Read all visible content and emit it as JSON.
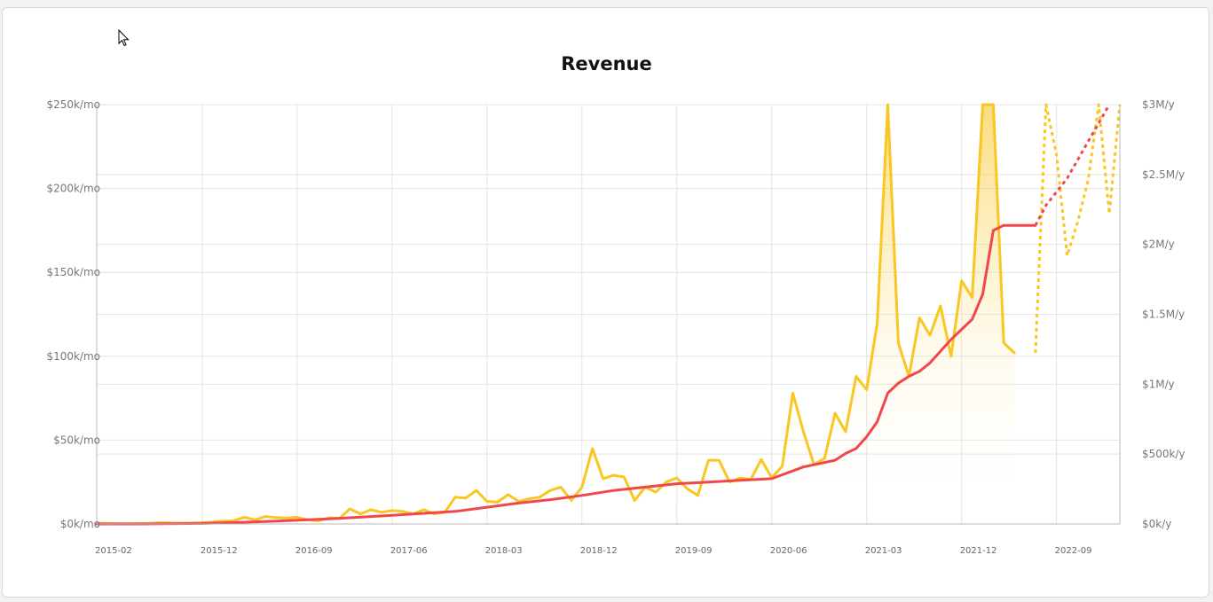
{
  "colors": {
    "monthly": "#f9c623",
    "annual": "#f0474a",
    "grid": "#e3e3e3",
    "axis": "#b9b9b9"
  },
  "chart_data": {
    "type": "line",
    "title": "Revenue",
    "left_axis": {
      "unit": "k/mo",
      "ylim": [
        0,
        250000
      ],
      "tick_labels": [
        "$250k/mo",
        "$200k/mo",
        "$150k/mo",
        "$100k/mo",
        "$50k/mo",
        "$0k/mo"
      ],
      "tick_values": [
        250000,
        200000,
        150000,
        100000,
        50000,
        0
      ]
    },
    "right_axis": {
      "unit": "M/y",
      "ylim": [
        0,
        3000000
      ],
      "tick_labels": [
        "$3M/y",
        "$2.5M/y",
        "$2M/y",
        "$1.5M/y",
        "$1M/y",
        "$500k/y",
        "$0k/y"
      ],
      "tick_values": [
        3000000,
        2500000,
        2000000,
        1500000,
        1000000,
        500000,
        0
      ]
    },
    "x_axis": {
      "range": [
        "2015-02",
        "2023-03"
      ],
      "tick_labels": [
        "2015-02",
        "2015-12",
        "2016-09",
        "2017-06",
        "2018-03",
        "2018-12",
        "2019-09",
        "2020-06",
        "2021-03",
        "2021-12",
        "2022-09"
      ],
      "tick_values": [
        "2015-02",
        "2015-12",
        "2016-09",
        "2017-06",
        "2018-03",
        "2018-12",
        "2019-09",
        "2020-06",
        "2021-03",
        "2021-12",
        "2022-09"
      ]
    },
    "grid": true,
    "series": [
      {
        "key": "monthly",
        "axis": "left",
        "area": true,
        "x": [
          "2015-02",
          "2015-03",
          "2015-04",
          "2015-05",
          "2015-06",
          "2015-07",
          "2015-08",
          "2015-09",
          "2015-10",
          "2015-11",
          "2015-12",
          "2016-01",
          "2016-02",
          "2016-03",
          "2016-04",
          "2016-05",
          "2016-06",
          "2016-07",
          "2016-08",
          "2016-09",
          "2016-10",
          "2016-11",
          "2016-12",
          "2017-01",
          "2017-02",
          "2017-03",
          "2017-04",
          "2017-05",
          "2017-06",
          "2017-07",
          "2017-08",
          "2017-09",
          "2017-10",
          "2017-11",
          "2017-12",
          "2018-01",
          "2018-02",
          "2018-03",
          "2018-04",
          "2018-05",
          "2018-06",
          "2018-07",
          "2018-08",
          "2018-09",
          "2018-10",
          "2018-11",
          "2018-12",
          "2019-01",
          "2019-02",
          "2019-03",
          "2019-04",
          "2019-05",
          "2019-06",
          "2019-07",
          "2019-08",
          "2019-09",
          "2019-10",
          "2019-11",
          "2019-12",
          "2020-01",
          "2020-02",
          "2020-03",
          "2020-04",
          "2020-05",
          "2020-06",
          "2020-07",
          "2020-08",
          "2020-09",
          "2020-10",
          "2020-11",
          "2020-12",
          "2021-01",
          "2021-02",
          "2021-03",
          "2021-04",
          "2021-05",
          "2021-06",
          "2021-07",
          "2021-08",
          "2021-09",
          "2021-10",
          "2021-11",
          "2021-12",
          "2022-01",
          "2022-02",
          "2022-03",
          "2022-04",
          "2022-05",
          "2022-06",
          "2022-07"
        ],
        "values": [
          500,
          300,
          200,
          200,
          300,
          400,
          800,
          600,
          500,
          600,
          800,
          1200,
          1700,
          2000,
          4000,
          2500,
          4500,
          3800,
          3500,
          4000,
          2500,
          1800,
          3700,
          3300,
          9000,
          6000,
          8500,
          7000,
          8000,
          7500,
          6000,
          8500,
          6000,
          7000,
          16000,
          15500,
          20000,
          13500,
          13000,
          17500,
          13500,
          15000,
          16000,
          20000,
          22000,
          14000,
          22000,
          45000,
          27000,
          29000,
          28000,
          14000,
          22000,
          19000,
          25000,
          27500,
          21000,
          17000,
          38000,
          38000,
          25000,
          27500,
          26500,
          38500,
          27500,
          34500,
          78000,
          55000,
          35500,
          39000,
          66000,
          55000,
          88000,
          80000,
          120000,
          250000,
          108000,
          88000,
          123000,
          112500,
          130000,
          100000,
          145000,
          135000,
          250000,
          250000,
          108000,
          102000,
          null,
          null
        ],
        "projected_x": [
          "2022-07",
          "2022-08",
          "2022-09",
          "2022-10",
          "2022-11",
          "2022-12",
          "2023-01",
          "2023-02",
          "2023-03"
        ],
        "projected_values": [
          102000,
          250000,
          220000,
          160000,
          180000,
          205000,
          250000,
          185000,
          250000
        ]
      },
      {
        "key": "annual",
        "axis": "left",
        "area": false,
        "x": [
          "2015-02",
          "2015-06",
          "2015-12",
          "2016-06",
          "2016-12",
          "2017-06",
          "2017-12",
          "2018-03",
          "2018-06",
          "2018-09",
          "2018-12",
          "2019-03",
          "2019-06",
          "2019-09",
          "2019-12",
          "2020-03",
          "2020-06",
          "2020-09",
          "2020-12",
          "2021-01",
          "2021-02",
          "2021-03",
          "2021-04",
          "2021-05",
          "2021-06",
          "2021-07",
          "2021-08",
          "2021-09",
          "2021-10",
          "2021-11",
          "2021-12",
          "2022-01",
          "2022-02",
          "2022-03",
          "2022-04",
          "2022-05",
          "2022-06",
          "2022-07"
        ],
        "values": [
          0,
          0,
          300,
          1500,
          3000,
          5200,
          7500,
          10000,
          12500,
          14500,
          17000,
          20000,
          22000,
          24000,
          25000,
          26000,
          27000,
          34000,
          38000,
          42000,
          45000,
          52000,
          61000,
          78000,
          84000,
          88000,
          91000,
          96000,
          103000,
          110000,
          116000,
          122000,
          137000,
          175000,
          178000,
          178000,
          178000,
          178000
        ],
        "projected_x": [
          "2022-07",
          "2022-08",
          "2022-10",
          "2022-12",
          "2023-02"
        ],
        "projected_values": [
          178000,
          190000,
          206000,
          228000,
          250000
        ]
      }
    ]
  }
}
